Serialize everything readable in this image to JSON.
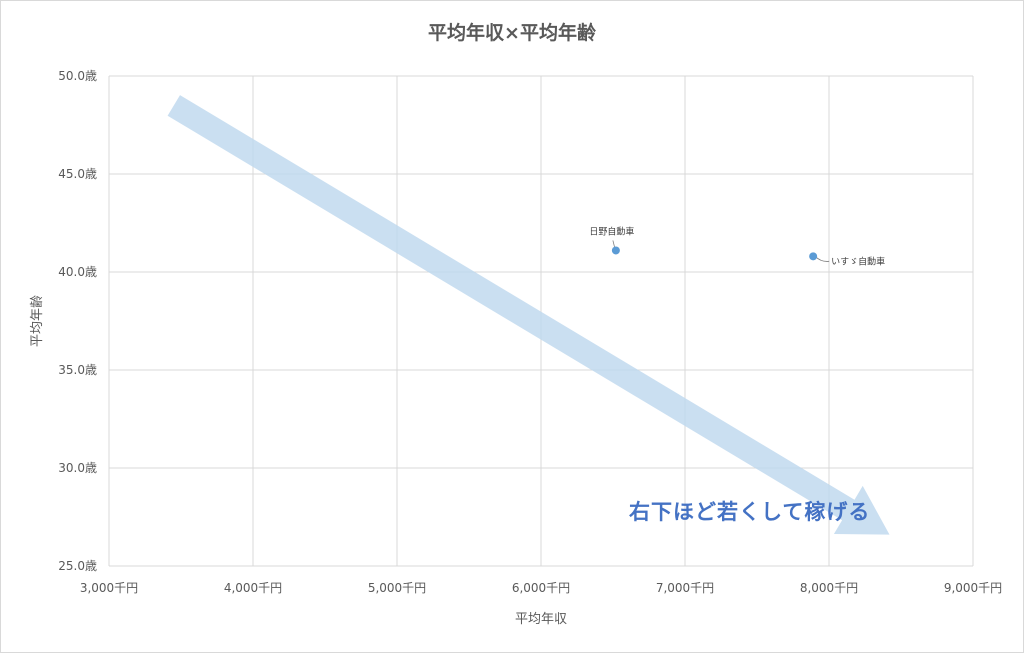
{
  "chart_data": {
    "type": "scatter",
    "title": "平均年収×平均年齢",
    "xlabel": "平均年収",
    "ylabel": "平均年齢",
    "xlim": [
      3000,
      9000
    ],
    "ylim": [
      25,
      50
    ],
    "x_ticks": [
      3000,
      4000,
      5000,
      6000,
      7000,
      8000,
      9000
    ],
    "x_tick_labels": [
      "3,000千円",
      "4,000千円",
      "5,000千円",
      "6,000千円",
      "7,000千円",
      "8,000千円",
      "9,000千円"
    ],
    "y_ticks": [
      25,
      30,
      35,
      40,
      45,
      50
    ],
    "y_tick_labels": [
      "25.0歳",
      "30.0歳",
      "35.0歳",
      "40.0歳",
      "45.0歳",
      "50.0歳"
    ],
    "grid": true,
    "points": [
      {
        "label": "日野自動車",
        "x": 6520,
        "y": 41.1
      },
      {
        "label": "いすゞ自動車",
        "x": 7890,
        "y": 40.8
      }
    ],
    "point_color": "#5b9bd5",
    "annotation": {
      "text": "右下ほど若くして稼げる",
      "arrow_from": {
        "x": 3450,
        "y": 48.5
      },
      "arrow_to": {
        "x": 8420,
        "y": 26.6
      },
      "arrow_color": "#bdd7ee",
      "text_color": "#4472c4"
    }
  }
}
